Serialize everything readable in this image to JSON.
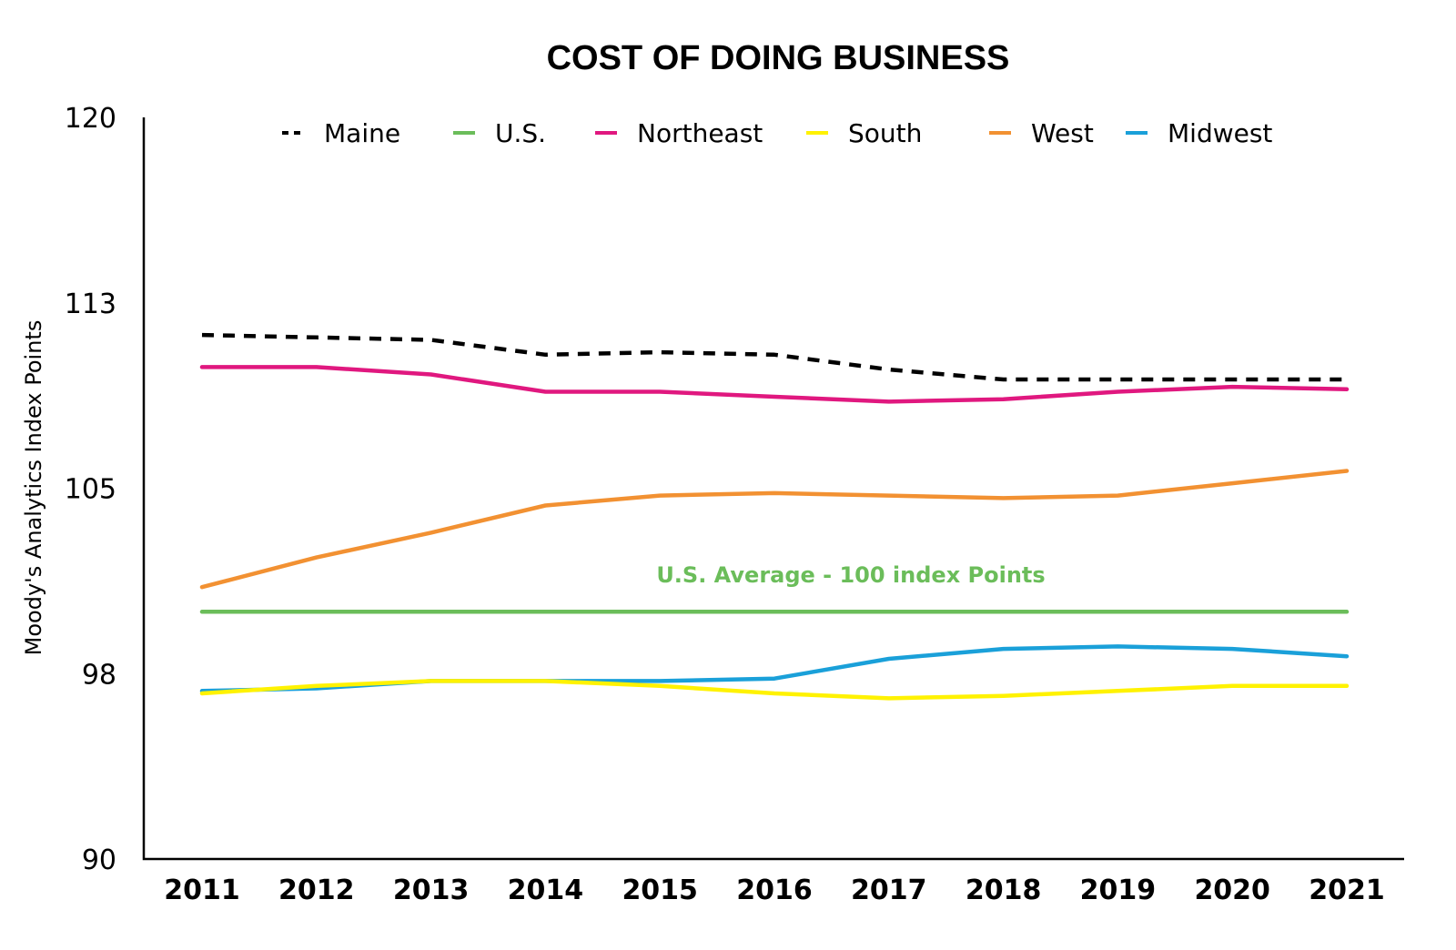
{
  "chart_data": {
    "type": "line",
    "title": "COST OF DOING BUSINESS",
    "xlabel": "",
    "ylabel": "Moody's Analytics Index Points",
    "x": [
      "2011",
      "2012",
      "2013",
      "2014",
      "2015",
      "2016",
      "2017",
      "2018",
      "2019",
      "2020",
      "2021"
    ],
    "y_ticks": [
      "120",
      "113",
      "105",
      "98",
      "90"
    ],
    "ylim": [
      90,
      120
    ],
    "legend_position": "top",
    "grid": false,
    "annotation": "U.S. Average - 100 index Points",
    "series": [
      {
        "name": "Maine",
        "color": "#000000",
        "dashed": true,
        "values": [
          111.2,
          111.1,
          111.0,
          110.4,
          110.5,
          110.4,
          109.8,
          109.4,
          109.4,
          109.4,
          109.4
        ]
      },
      {
        "name": "U.S.",
        "color": "#6bbd5a",
        "dashed": false,
        "values": [
          100.0,
          100.0,
          100.0,
          100.0,
          100.0,
          100.0,
          100.0,
          100.0,
          100.0,
          100.0,
          100.0
        ]
      },
      {
        "name": "Northeast",
        "color": "#e0187f",
        "dashed": false,
        "values": [
          109.9,
          109.9,
          109.6,
          108.9,
          108.9,
          108.7,
          108.5,
          108.6,
          108.9,
          109.1,
          109.0
        ]
      },
      {
        "name": "South",
        "color": "#fff200",
        "dashed": false,
        "values": [
          96.7,
          97.0,
          97.2,
          97.2,
          97.0,
          96.7,
          96.5,
          96.6,
          96.8,
          97.0,
          97.0
        ]
      },
      {
        "name": "West",
        "color": "#f29132",
        "dashed": false,
        "values": [
          101.0,
          102.2,
          103.2,
          104.3,
          104.7,
          104.8,
          104.7,
          104.6,
          104.7,
          105.2,
          105.7
        ]
      },
      {
        "name": "Midwest",
        "color": "#1aa0d9",
        "dashed": false,
        "values": [
          96.8,
          96.9,
          97.2,
          97.2,
          97.2,
          97.3,
          98.1,
          98.5,
          98.6,
          98.5,
          98.2
        ]
      }
    ]
  }
}
